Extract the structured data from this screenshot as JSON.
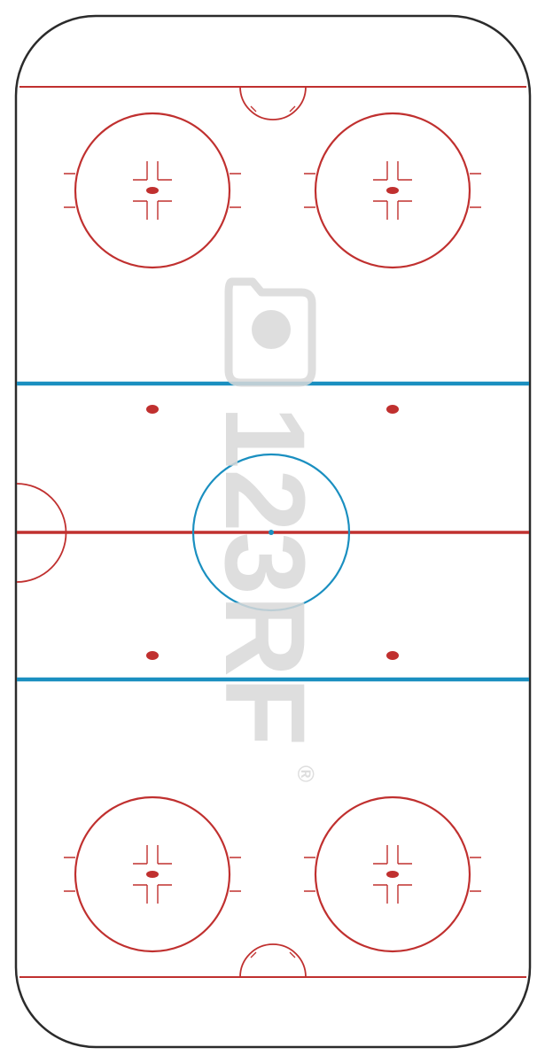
{
  "colors": {
    "background": "#ffffff",
    "boards": "#2b2b2b",
    "red_line": "#c0302f",
    "blue_line": "#1a8fc0",
    "watermark": "#d9d9d9"
  },
  "watermark": {
    "text": "123RF",
    "registered_mark": "®"
  }
}
